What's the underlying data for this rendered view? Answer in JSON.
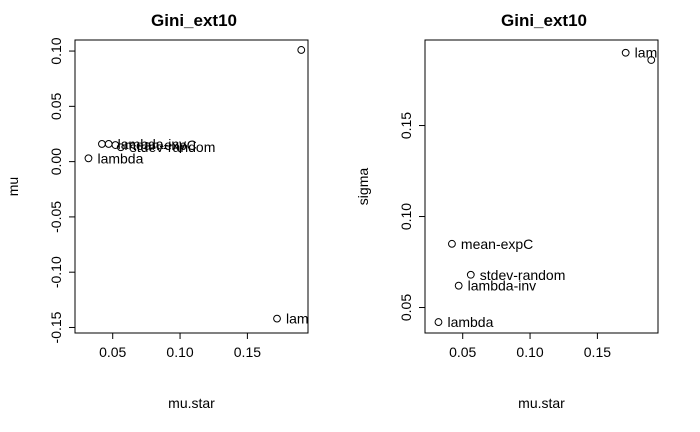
{
  "chart_data": [
    {
      "type": "scatter",
      "title": "Gini_ext10",
      "xlabel": "mu.star",
      "ylabel": "mu",
      "xlim": [
        0.022,
        0.195
      ],
      "ylim": [
        -0.155,
        0.11
      ],
      "xticks": [
        {
          "v": 0.05,
          "label": "0.05"
        },
        {
          "v": 0.1,
          "label": "0.10"
        },
        {
          "v": 0.15,
          "label": "0.15"
        }
      ],
      "yticks": [
        {
          "v": -0.15,
          "label": "-0.15"
        },
        {
          "v": -0.1,
          "label": "-0.10"
        },
        {
          "v": -0.05,
          "label": "-0.05"
        },
        {
          "v": 0.0,
          "label": "0.00"
        },
        {
          "v": 0.05,
          "label": "0.05"
        },
        {
          "v": 0.1,
          "label": "0.10"
        }
      ],
      "grid": false,
      "points": [
        {
          "x": 0.19,
          "y": 0.101,
          "label": ""
        },
        {
          "x": 0.172,
          "y": -0.142,
          "label": "lam"
        },
        {
          "x": 0.032,
          "y": 0.003,
          "label": "lambda"
        },
        {
          "x": 0.042,
          "y": 0.016,
          "label": ""
        },
        {
          "x": 0.047,
          "y": 0.016,
          "label": "lambda-inv"
        },
        {
          "x": 0.052,
          "y": 0.015,
          "label": "mean-expC"
        },
        {
          "x": 0.056,
          "y": 0.013,
          "label": "stdev-random"
        }
      ]
    },
    {
      "type": "scatter",
      "title": "Gini_ext10",
      "xlabel": "mu.star",
      "ylabel": "sigma",
      "xlim": [
        0.022,
        0.195
      ],
      "ylim": [
        0.036,
        0.197
      ],
      "xticks": [
        {
          "v": 0.05,
          "label": "0.05"
        },
        {
          "v": 0.1,
          "label": "0.10"
        },
        {
          "v": 0.15,
          "label": "0.15"
        }
      ],
      "yticks": [
        {
          "v": 0.05,
          "label": "0.05"
        },
        {
          "v": 0.1,
          "label": "0.10"
        },
        {
          "v": 0.15,
          "label": "0.15"
        }
      ],
      "grid": false,
      "points": [
        {
          "x": 0.171,
          "y": 0.19,
          "label": "lam"
        },
        {
          "x": 0.19,
          "y": 0.186,
          "label": ""
        },
        {
          "x": 0.042,
          "y": 0.085,
          "label": "mean-expC"
        },
        {
          "x": 0.056,
          "y": 0.068,
          "label": "stdev-random"
        },
        {
          "x": 0.047,
          "y": 0.062,
          "label": "lambda-inv"
        },
        {
          "x": 0.032,
          "y": 0.042,
          "label": "lambda"
        }
      ]
    }
  ]
}
